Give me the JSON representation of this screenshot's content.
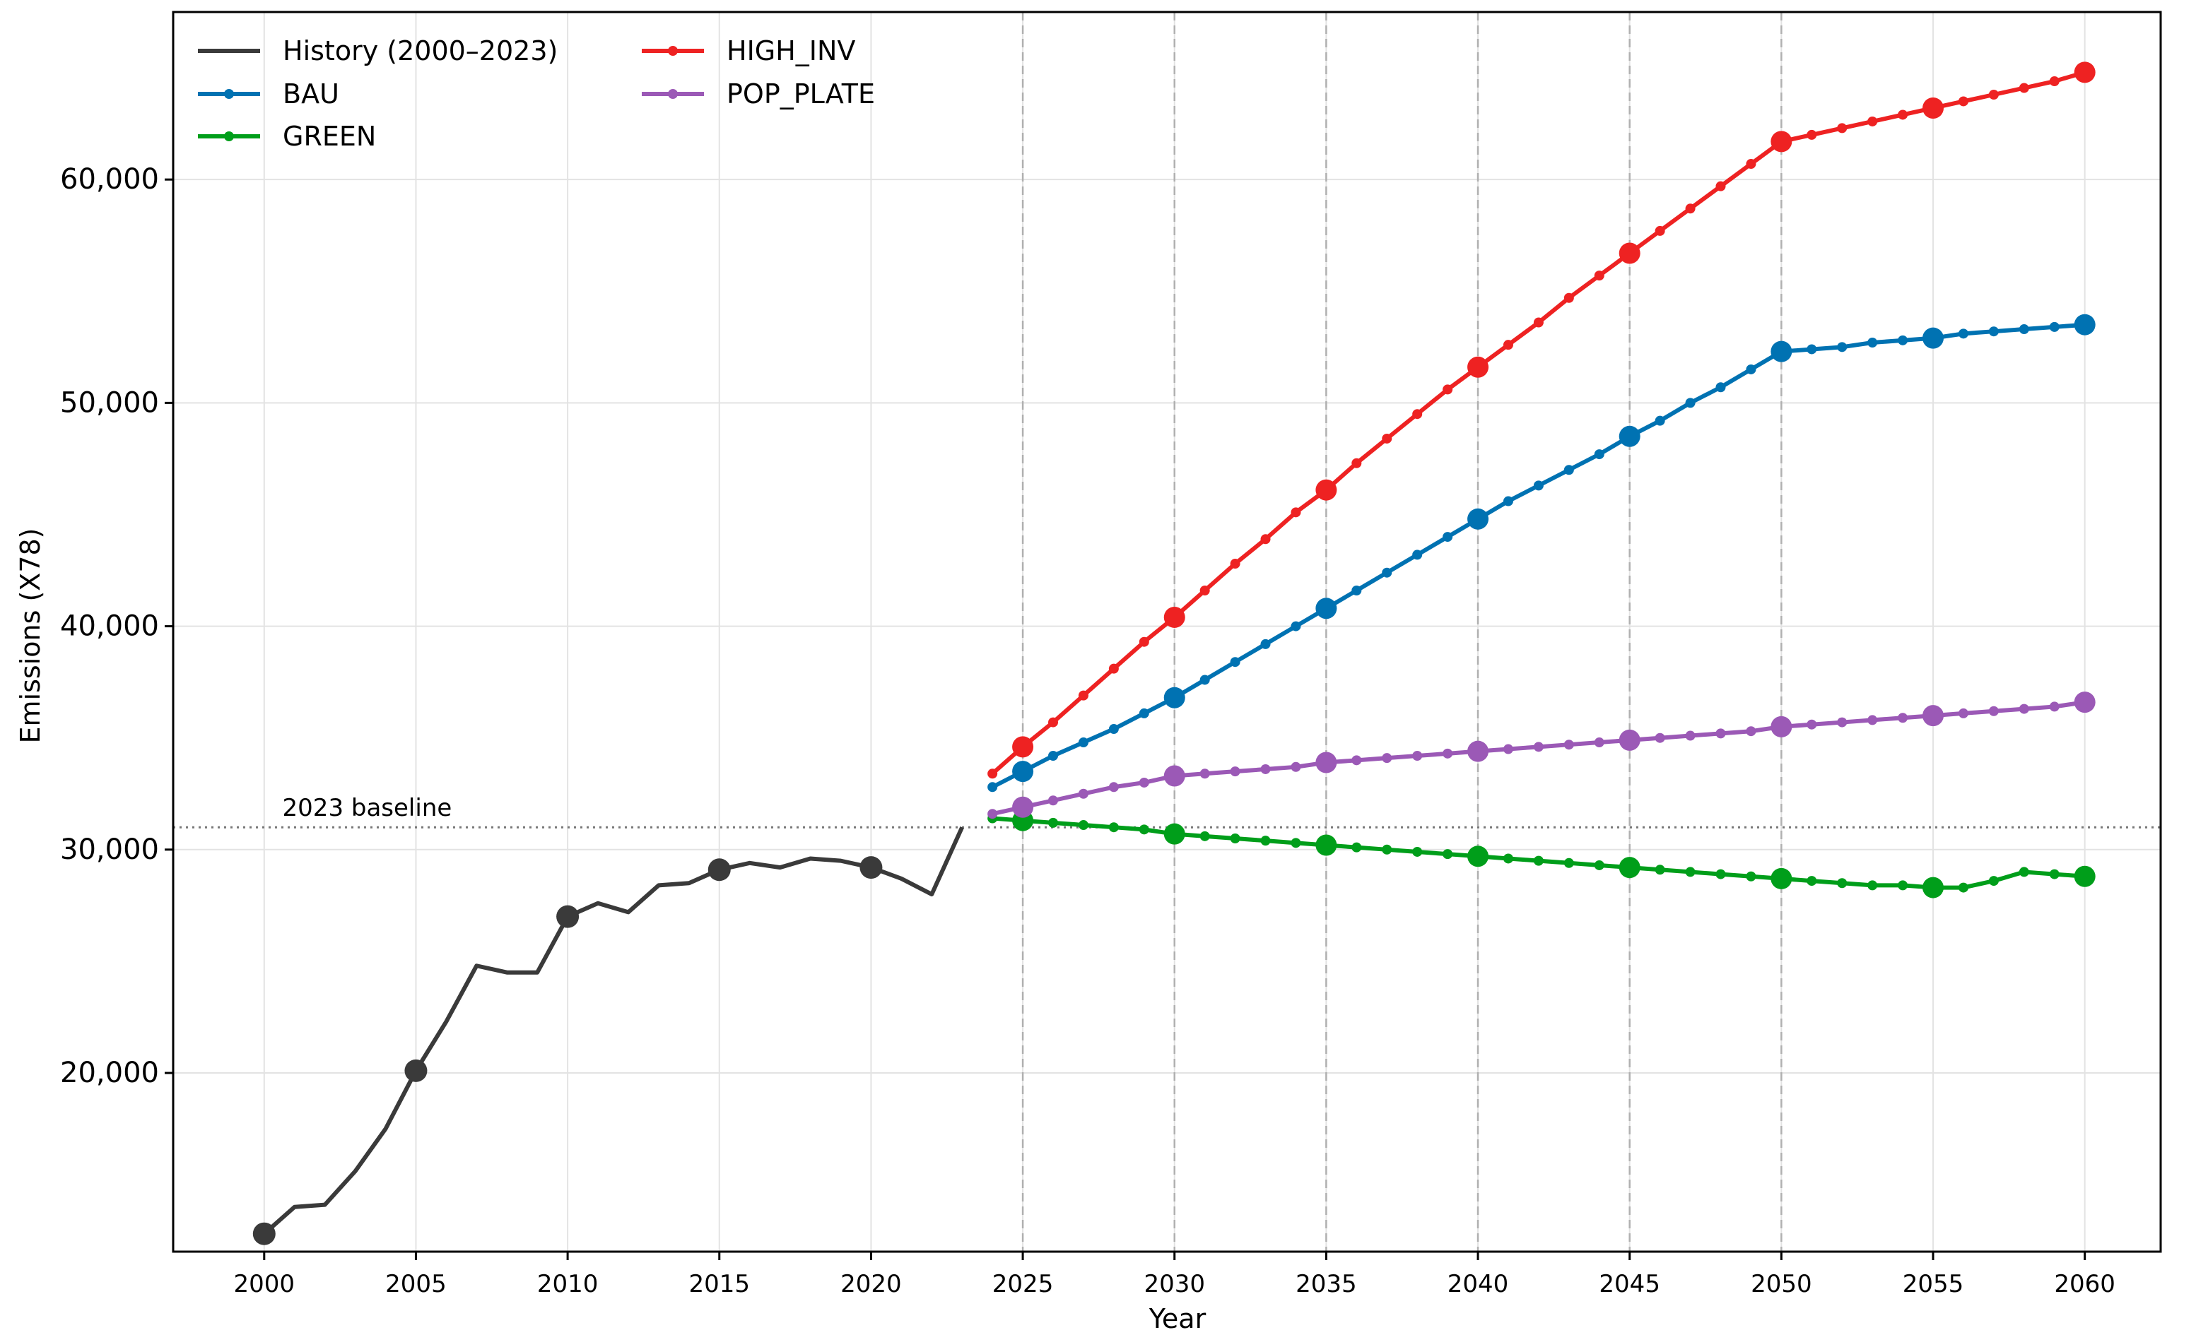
{
  "chart_data": {
    "type": "line",
    "title": "",
    "xlabel": "Year",
    "ylabel": "Emissions (X78)",
    "xlim": [
      1997,
      2062.5
    ],
    "ylim": [
      12000,
      67500
    ],
    "x_ticks": [
      2000,
      2005,
      2010,
      2015,
      2020,
      2025,
      2030,
      2035,
      2040,
      2045,
      2050,
      2055,
      2060
    ],
    "x_tick_labels": [
      "2000",
      "2005",
      "2010",
      "2015",
      "2020",
      "2025",
      "2030",
      "2035",
      "2040",
      "2045",
      "2050",
      "2055",
      "2060"
    ],
    "y_ticks": [
      20000,
      30000,
      40000,
      50000,
      60000
    ],
    "y_tick_labels": [
      "20,000",
      "30,000",
      "40,000",
      "50,000",
      "60,000"
    ],
    "grid": true,
    "legend_position": "top-left",
    "milestone_vlines": [
      2025,
      2030,
      2035,
      2040,
      2045,
      2050
    ],
    "baseline": {
      "value": 31000,
      "label": "2023 baseline"
    },
    "history": {
      "name": "History (2000–2023)",
      "color": "#3a3a3a",
      "x": [
        2000,
        2001,
        2002,
        2003,
        2004,
        2005,
        2006,
        2007,
        2008,
        2009,
        2010,
        2011,
        2012,
        2013,
        2014,
        2015,
        2016,
        2017,
        2018,
        2019,
        2020,
        2021,
        2022,
        2023
      ],
      "values": [
        12800,
        14000,
        14100,
        15600,
        17500,
        20100,
        22300,
        24800,
        24500,
        24500,
        27000,
        27600,
        27200,
        28400,
        28500,
        29100,
        29400,
        29200,
        29600,
        29500,
        29200,
        28700,
        28000,
        31000
      ],
      "markers": [
        2000,
        2005,
        2010,
        2015,
        2020
      ]
    },
    "scenario_x": [
      2024,
      2025,
      2026,
      2027,
      2028,
      2029,
      2030,
      2031,
      2032,
      2033,
      2034,
      2035,
      2036,
      2037,
      2038,
      2039,
      2040,
      2041,
      2042,
      2043,
      2044,
      2045,
      2046,
      2047,
      2048,
      2049,
      2050,
      2051,
      2052,
      2053,
      2054,
      2055,
      2056,
      2057,
      2058,
      2059,
      2060
    ],
    "scenario_markers": [
      2025,
      2030,
      2035,
      2040,
      2045,
      2050,
      2055,
      2060
    ],
    "series": [
      {
        "name": "BAU",
        "color": "#0072b2",
        "values": [
          32800,
          33500,
          34200,
          34800,
          35400,
          36100,
          36800,
          37600,
          38400,
          39200,
          40000,
          40800,
          41600,
          42400,
          43200,
          44000,
          44800,
          45600,
          46300,
          47000,
          47700,
          48500,
          49200,
          50000,
          50700,
          51500,
          52300,
          52400,
          52500,
          52700,
          52800,
          52900,
          53100,
          53200,
          53300,
          53400,
          53500
        ]
      },
      {
        "name": "GREEN",
        "color": "#009e1a",
        "values": [
          31400,
          31300,
          31200,
          31100,
          31000,
          30900,
          30700,
          30600,
          30500,
          30400,
          30300,
          30200,
          30100,
          30000,
          29900,
          29800,
          29700,
          29600,
          29500,
          29400,
          29300,
          29200,
          29100,
          29000,
          28900,
          28800,
          28700,
          28600,
          28500,
          28400,
          28400,
          28300,
          28300,
          28600,
          29000,
          28900,
          28800
        ]
      },
      {
        "name": "HIGH_INV",
        "color": "#ee2222",
        "values": [
          33400,
          34600,
          35700,
          36900,
          38100,
          39300,
          40400,
          41600,
          42800,
          43900,
          45100,
          46100,
          47300,
          48400,
          49500,
          50600,
          51600,
          52600,
          53600,
          54700,
          55700,
          56700,
          57700,
          58700,
          59700,
          60700,
          61700,
          62000,
          62300,
          62600,
          62900,
          63200,
          63500,
          63800,
          64100,
          64400,
          64800
        ]
      },
      {
        "name": "POP_PLATE",
        "color": "#9b59b6",
        "values": [
          31600,
          31900,
          32200,
          32500,
          32800,
          33000,
          33300,
          33400,
          33500,
          33600,
          33700,
          33900,
          34000,
          34100,
          34200,
          34300,
          34400,
          34500,
          34600,
          34700,
          34800,
          34900,
          35000,
          35100,
          35200,
          35300,
          35500,
          35600,
          35700,
          35800,
          35900,
          36000,
          36100,
          36200,
          36300,
          36400,
          36600
        ]
      }
    ]
  }
}
